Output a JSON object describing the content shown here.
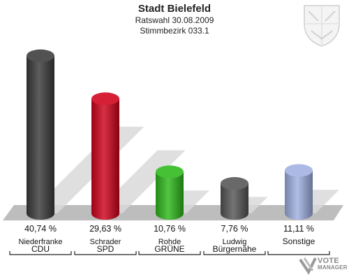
{
  "header": {
    "title": "Stadt Bielefeld",
    "subtitle": "Ratswahl 30.08.2009",
    "subtitle2": "Stimmbezirk 033.1"
  },
  "logo": {
    "line1": "VOTE",
    "line2": "MANAGER"
  },
  "chart_data": {
    "type": "bar",
    "title": "Stadt Bielefeld",
    "subtitle": "Ratswahl 30.08.2009 / Stimmbezirk 033.1",
    "categories": [
      "CDU",
      "SPD",
      "GRÜNE",
      "Bürgernähe",
      "Sonstige"
    ],
    "candidates": [
      "Niederfranke",
      "Schrader",
      "Rohde",
      "Ludwig",
      ""
    ],
    "values": [
      40.74,
      29.63,
      10.76,
      7.76,
      11.11
    ],
    "value_labels": [
      "40,74 %",
      "29,63 %",
      "10,76 %",
      "7,76 %",
      "11,11 %"
    ],
    "colors": [
      "#3a3a3a",
      "#d0021b",
      "#2db81a",
      "#555555",
      "#9fb0e0"
    ],
    "ylim": [
      0,
      45
    ],
    "grid": false,
    "legend": "none"
  }
}
